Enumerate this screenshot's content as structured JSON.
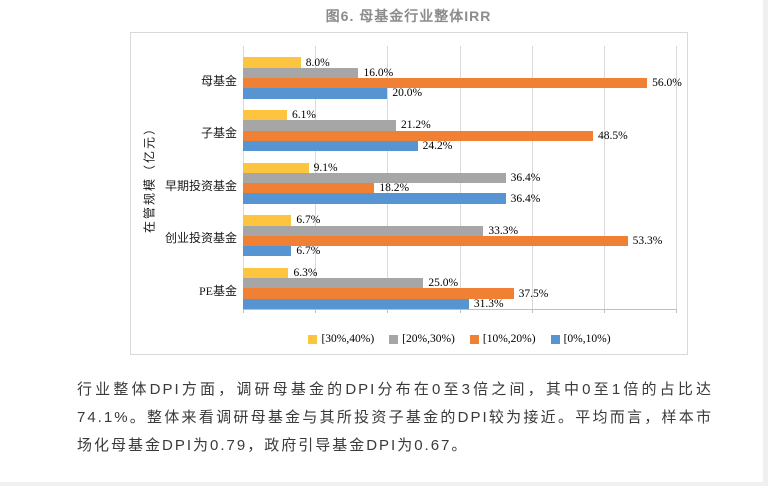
{
  "page": {
    "caption": "图6. 母基金行业整体IRR",
    "paragraph": "行业整体DPI方面，调研母基金的DPI分布在0至3倍之间，其中0至1倍的占比达74.1%。整体来看调研母基金与其所投资子基金的DPI较为接近。平均而言，样本市场化母基金DPI为0.79，政府引导基金DPI为0.67。"
  },
  "chart_data": {
    "type": "bar",
    "orientation": "horizontal",
    "title": "图6. 母基金行业整体IRR",
    "ylabel": "在管规模（亿元）",
    "categories": [
      "母基金",
      "子基金",
      "早期投资基金",
      "创业投资基金",
      "PE基金"
    ],
    "series": [
      {
        "name": "[30%,40%)",
        "color": "#FCC43F",
        "values": [
          8.0,
          6.1,
          9.1,
          6.7,
          6.3
        ]
      },
      {
        "name": "[20%,30%)",
        "color": "#A6A6A6",
        "values": [
          16.0,
          21.2,
          36.4,
          33.3,
          25.0
        ]
      },
      {
        "name": "[10%,20%)",
        "color": "#EF8034",
        "values": [
          56.0,
          48.5,
          18.2,
          53.3,
          37.5
        ]
      },
      {
        "name": "[0%,10%)",
        "color": "#5795D2",
        "values": [
          20.0,
          24.2,
          36.4,
          6.7,
          31.3
        ]
      }
    ],
    "value_label_suffix": "%",
    "xlim": [
      0,
      60
    ],
    "gridline_step": 10,
    "grid": "vertical-lines-on",
    "legend_position": "bottom",
    "colors": {
      "gridline": "#d9d9d9",
      "axis": "#bfbfbf",
      "chart_border": "#d9d9d9",
      "title_text": "#8c8c8c",
      "body_text": "#3a3a3a"
    }
  }
}
